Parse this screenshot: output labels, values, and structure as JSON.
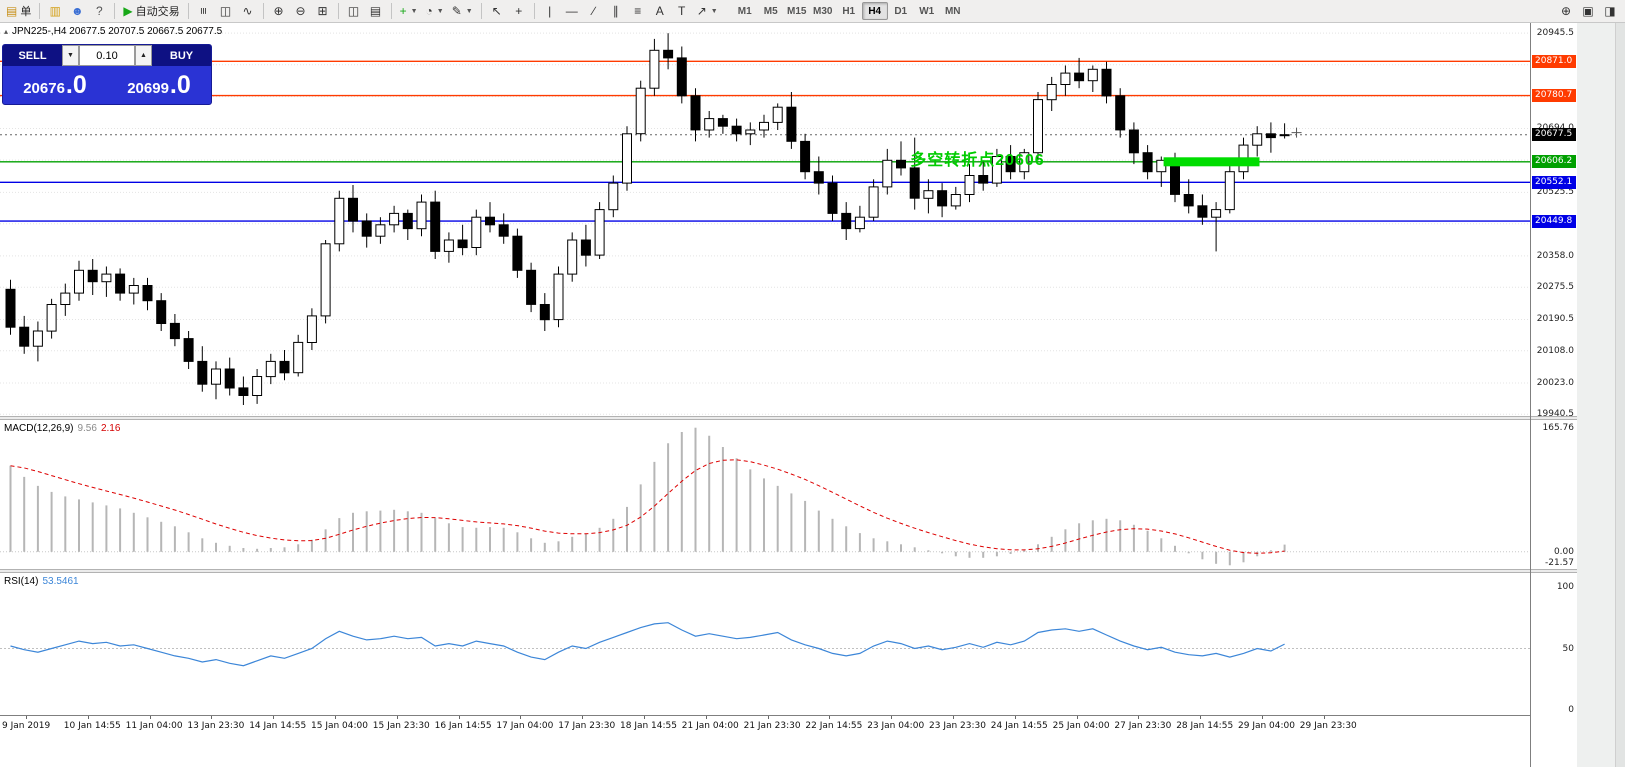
{
  "toolbar": {
    "left_groups": [
      {
        "items": [
          {
            "name": "new-order-button",
            "glyph": "▤",
            "glyph_color": "#c89018",
            "label": "单"
          }
        ]
      },
      {
        "items": [
          {
            "name": "chart-window-icon",
            "glyph": "▥",
            "glyph_color": "#d4a017"
          },
          {
            "name": "profile-icon",
            "glyph": "☻",
            "glyph_color": "#3b6fd4"
          },
          {
            "name": "help-icon",
            "glyph": "?",
            "glyph_color": "#555555"
          }
        ]
      },
      {
        "items": [
          {
            "name": "autotrade-button",
            "glyph": "▶",
            "glyph_color": "#18a818",
            "label": "自动交易"
          }
        ]
      },
      {
        "items": [
          {
            "name": "bar-chart-icon",
            "glyph": "≡",
            "rotate": true
          },
          {
            "name": "candlestick-chart-icon",
            "glyph": "◫"
          },
          {
            "name": "line-chart-icon",
            "glyph": "∿"
          }
        ]
      },
      {
        "items": [
          {
            "name": "zoom-in-icon",
            "glyph": "⊕"
          },
          {
            "name": "zoom-out-icon",
            "glyph": "⊖"
          },
          {
            "name": "tile-windows-icon",
            "glyph": "⊞"
          }
        ]
      },
      {
        "items": [
          {
            "name": "arrange-windows-icon",
            "glyph": "◫"
          },
          {
            "name": "cascade-windows-icon",
            "glyph": "▤"
          }
        ]
      },
      {
        "items": [
          {
            "name": "add-indicator-icon",
            "glyph": "+",
            "glyph_color": "#18a818",
            "caret": true
          },
          {
            "name": "periods-icon",
            "glyph": "◔",
            "caret": true
          },
          {
            "name": "template-icon",
            "glyph": "✎",
            "caret": true
          }
        ]
      },
      {
        "items": [
          {
            "name": "cursor-icon",
            "glyph": "↖"
          },
          {
            "name": "crosshair-icon",
            "glyph": "+"
          }
        ]
      },
      {
        "items": [
          {
            "name": "vertical-line-icon",
            "glyph": "|"
          },
          {
            "name": "horizontal-line-icon",
            "glyph": "—"
          },
          {
            "name": "trendline-icon",
            "glyph": "∕"
          },
          {
            "name": "channel-icon",
            "glyph": "∥"
          },
          {
            "name": "fibonacci-icon",
            "glyph": "≡"
          },
          {
            "name": "text-icon",
            "glyph": "A"
          },
          {
            "name": "label-icon",
            "glyph": "T"
          },
          {
            "name": "shapes-icon",
            "glyph": "↗",
            "caret": true
          }
        ]
      }
    ],
    "timeframes": [
      "M1",
      "M5",
      "M15",
      "M30",
      "H1",
      "H4",
      "D1",
      "W1",
      "MN"
    ],
    "active_timeframe": "H4",
    "right_items": [
      {
        "name": "search-zoom-icon",
        "glyph": "⊕"
      },
      {
        "name": "window-icon",
        "glyph": "▣"
      },
      {
        "name": "panel-toggle-icon",
        "glyph": "◨"
      }
    ]
  },
  "symbol_header": {
    "marker": "▴",
    "text": "JPN225-,H4  20677.5 20707.5 20667.5 20677.5"
  },
  "trade_panel": {
    "sell_label": "SELL",
    "buy_label": "BUY",
    "volume": "0.10",
    "spin_down": "▼",
    "spin_up": "▲",
    "sell_price_main": "20676",
    "sell_price_big": ".0",
    "buy_price_main": "20699",
    "buy_price_big": ".0"
  },
  "macd_label": {
    "name": "MACD(12,26,9)",
    "value_main": "9.56",
    "value_signal": "2.16"
  },
  "rsi_label": {
    "name": "RSI(14)",
    "value": "53.5461"
  },
  "price_axis": {
    "ticks": [
      19940.5,
      20023.0,
      20108.0,
      20190.5,
      20275.5,
      20358.0,
      20443.0,
      20525.5,
      20610.5,
      20694.0,
      20778.0,
      20862.0,
      20945.5
    ]
  },
  "macd_axis": [
    {
      "label": "165.76",
      "v": 165.76
    },
    {
      "label": "0.00",
      "v": 0
    },
    {
      "label": "-21.57",
      "v": -21.57
    }
  ],
  "rsi_axis": [
    {
      "label": "100",
      "v": 100
    },
    {
      "label": "50",
      "v": 50
    },
    {
      "label": "0",
      "v": 0
    }
  ],
  "time_axis": [
    "9 Jan 2019",
    "10 Jan 14:55",
    "11 Jan 04:00",
    "13 Jan 23:30",
    "14 Jan 14:55",
    "15 Jan 04:00",
    "15 Jan 23:30",
    "16 Jan 14:55",
    "17 Jan 04:00",
    "17 Jan 23:30",
    "18 Jan 14:55",
    "21 Jan 04:00",
    "21 Jan 23:30",
    "22 Jan 14:55",
    "23 Jan 04:00",
    "23 Jan 23:30",
    "24 Jan 14:55",
    "25 Jan 04:00",
    "27 Jan 23:30",
    "28 Jan 14:55",
    "29 Jan 04:00",
    "29 Jan 23:30"
  ],
  "chart_data": {
    "type": "candlestick",
    "symbol": "JPN225-",
    "timeframe": "H4",
    "title": "JPN225-,H4",
    "ylim": [
      19940.5,
      20945.5
    ],
    "ohlc": [
      [
        20270,
        20295,
        20150,
        20170
      ],
      [
        20170,
        20200,
        20100,
        20120
      ],
      [
        20120,
        20185,
        20080,
        20160
      ],
      [
        20160,
        20245,
        20140,
        20230
      ],
      [
        20230,
        20285,
        20200,
        20260
      ],
      [
        20260,
        20345,
        20240,
        20320
      ],
      [
        20320,
        20350,
        20255,
        20290
      ],
      [
        20290,
        20330,
        20250,
        20310
      ],
      [
        20310,
        20325,
        20240,
        20260
      ],
      [
        20260,
        20300,
        20230,
        20280
      ],
      [
        20280,
        20300,
        20215,
        20240
      ],
      [
        20240,
        20260,
        20160,
        20180
      ],
      [
        20180,
        20205,
        20120,
        20140
      ],
      [
        20140,
        20160,
        20060,
        20080
      ],
      [
        20080,
        20120,
        20000,
        20020
      ],
      [
        20020,
        20080,
        19980,
        20060
      ],
      [
        20060,
        20090,
        19990,
        20010
      ],
      [
        20010,
        20040,
        19965,
        19990
      ],
      [
        19990,
        20060,
        19968,
        20040
      ],
      [
        20040,
        20100,
        20020,
        20080
      ],
      [
        20080,
        20110,
        20030,
        20050
      ],
      [
        20050,
        20150,
        20040,
        20130
      ],
      [
        20130,
        20220,
        20110,
        20200
      ],
      [
        20200,
        20400,
        20180,
        20390
      ],
      [
        20390,
        20530,
        20370,
        20510
      ],
      [
        20510,
        20545,
        20420,
        20450
      ],
      [
        20450,
        20470,
        20380,
        20410
      ],
      [
        20410,
        20460,
        20390,
        20440
      ],
      [
        20440,
        20490,
        20420,
        20470
      ],
      [
        20470,
        20480,
        20400,
        20430
      ],
      [
        20430,
        20520,
        20410,
        20500
      ],
      [
        20500,
        20530,
        20350,
        20370
      ],
      [
        20370,
        20420,
        20340,
        20400
      ],
      [
        20400,
        20440,
        20360,
        20380
      ],
      [
        20380,
        20480,
        20360,
        20460
      ],
      [
        20460,
        20500,
        20420,
        20440
      ],
      [
        20440,
        20470,
        20390,
        20410
      ],
      [
        20410,
        20430,
        20300,
        20320
      ],
      [
        20320,
        20340,
        20210,
        20230
      ],
      [
        20230,
        20260,
        20160,
        20190
      ],
      [
        20190,
        20330,
        20170,
        20310
      ],
      [
        20310,
        20420,
        20290,
        20400
      ],
      [
        20400,
        20440,
        20330,
        20360
      ],
      [
        20360,
        20500,
        20350,
        20480
      ],
      [
        20480,
        20570,
        20460,
        20550
      ],
      [
        20550,
        20700,
        20530,
        20680
      ],
      [
        20680,
        20820,
        20660,
        20800
      ],
      [
        20800,
        20930,
        20780,
        20900
      ],
      [
        20900,
        20945,
        20850,
        20880
      ],
      [
        20880,
        20910,
        20760,
        20780
      ],
      [
        20780,
        20800,
        20660,
        20690
      ],
      [
        20690,
        20740,
        20670,
        20720
      ],
      [
        20720,
        20730,
        20680,
        20700
      ],
      [
        20700,
        20720,
        20660,
        20680
      ],
      [
        20680,
        20710,
        20650,
        20690
      ],
      [
        20690,
        20730,
        20670,
        20710
      ],
      [
        20710,
        20760,
        20690,
        20750
      ],
      [
        20750,
        20790,
        20640,
        20660
      ],
      [
        20660,
        20680,
        20560,
        20580
      ],
      [
        20580,
        20620,
        20520,
        20550
      ],
      [
        20550,
        20570,
        20450,
        20470
      ],
      [
        20470,
        20500,
        20400,
        20430
      ],
      [
        20430,
        20490,
        20420,
        20460
      ],
      [
        20460,
        20560,
        20450,
        20540
      ],
      [
        20540,
        20640,
        20520,
        20610
      ],
      [
        20610,
        20660,
        20570,
        20590
      ],
      [
        20590,
        20670,
        20480,
        20510
      ],
      [
        20510,
        20560,
        20470,
        20530
      ],
      [
        20530,
        20550,
        20460,
        20490
      ],
      [
        20490,
        20540,
        20480,
        20520
      ],
      [
        20520,
        20600,
        20500,
        20570
      ],
      [
        20570,
        20610,
        20530,
        20550
      ],
      [
        20550,
        20640,
        20540,
        20620
      ],
      [
        20620,
        20650,
        20560,
        20580
      ],
      [
        20580,
        20640,
        20560,
        20630
      ],
      [
        20630,
        20790,
        20610,
        20770
      ],
      [
        20770,
        20830,
        20740,
        20810
      ],
      [
        20810,
        20860,
        20780,
        20840
      ],
      [
        20840,
        20880,
        20800,
        20820
      ],
      [
        20820,
        20860,
        20790,
        20850
      ],
      [
        20850,
        20870,
        20760,
        20780
      ],
      [
        20780,
        20800,
        20670,
        20690
      ],
      [
        20690,
        20710,
        20600,
        20630
      ],
      [
        20630,
        20650,
        20560,
        20580
      ],
      [
        20580,
        20620,
        20540,
        20610
      ],
      [
        20610,
        20630,
        20500,
        20520
      ],
      [
        20520,
        20560,
        20470,
        20490
      ],
      [
        20490,
        20520,
        20440,
        20460
      ],
      [
        20460,
        20500,
        20370,
        20480
      ],
      [
        20480,
        20600,
        20470,
        20580
      ],
      [
        20580,
        20670,
        20560,
        20650
      ],
      [
        20650,
        20700,
        20620,
        20680
      ],
      [
        20680,
        20710,
        20630,
        20670
      ],
      [
        20677.5,
        20707.5,
        20667.5,
        20677.5
      ]
    ],
    "hlines": [
      {
        "price": 20871.0,
        "color": "#FF3B00",
        "width": 1.4,
        "style": "solid",
        "label": "20871.0",
        "badge": "#FF3B00"
      },
      {
        "price": 20780.7,
        "color": "#FF3B00",
        "width": 1.4,
        "style": "solid",
        "label": "20780.7",
        "badge": "#FF3B00"
      },
      {
        "price": 20677.5,
        "color": "#666666",
        "width": 1,
        "style": "dotted",
        "label": "20677.5",
        "badge": "#000000",
        "role": "current-price"
      },
      {
        "price": 20606.2,
        "color": "#00A000",
        "width": 1.4,
        "style": "solid",
        "label": "20606.2",
        "badge": "#00A000"
      },
      {
        "price": 20552.1,
        "color": "#0000E6",
        "width": 1.4,
        "style": "solid",
        "label": "20552.1",
        "badge": "#0000E6"
      },
      {
        "price": 20449.8,
        "color": "#0000E6",
        "width": 1.4,
        "style": "solid",
        "label": "20449.8",
        "badge": "#0000E6"
      }
    ],
    "objects": [
      {
        "type": "text",
        "text": "多空转折点20606",
        "color": "#00CC00",
        "bar": 66,
        "price": 20635
      },
      {
        "type": "rect",
        "color": "#00DD00",
        "from_bar": 84.5,
        "to_bar": 91.5,
        "price": 20606.2,
        "thickness": 9
      },
      {
        "type": "cross",
        "bar": 94.2,
        "price": 20683,
        "color": "#555555"
      }
    ],
    "indicators": [
      {
        "name": "MACD(12,26,9)",
        "type": "histogram+signal",
        "last_main": 9.56,
        "last_signal": 2.16,
        "signal_period": 9,
        "range": [
          -21.57,
          165.76
        ],
        "values": [
          115,
          100,
          88,
          80,
          74,
          70,
          66,
          62,
          58,
          52,
          46,
          40,
          34,
          26,
          18,
          12,
          8,
          5,
          4,
          5,
          6,
          10,
          16,
          30,
          45,
          52,
          54,
          55,
          56,
          54,
          52,
          45,
          38,
          33,
          32,
          33,
          32,
          26,
          18,
          12,
          14,
          20,
          24,
          32,
          44,
          60,
          90,
          120,
          145,
          160,
          165.76,
          155,
          140,
          125,
          110,
          98,
          88,
          78,
          68,
          55,
          44,
          34,
          25,
          18,
          14,
          10,
          6,
          2,
          -2,
          -6,
          -8,
          -8,
          -6,
          -3,
          2,
          10,
          20,
          30,
          38,
          42,
          44,
          42,
          36,
          28,
          18,
          8,
          -2,
          -10,
          -16,
          -18,
          -14,
          -6,
          2,
          9.56
        ]
      },
      {
        "name": "RSI(14)",
        "type": "line",
        "last": 53.5461,
        "levels": [
          50
        ],
        "range": [
          0,
          100
        ],
        "values": [
          52,
          49,
          47,
          50,
          53,
          56,
          54,
          55,
          52,
          53,
          50,
          47,
          44,
          42,
          39,
          41,
          38,
          36,
          40,
          44,
          42,
          46,
          50,
          58,
          64,
          60,
          57,
          58,
          60,
          58,
          59,
          52,
          54,
          52,
          56,
          54,
          52,
          47,
          43,
          41,
          47,
          52,
          50,
          55,
          59,
          63,
          67,
          70,
          71,
          65,
          60,
          62,
          60,
          58,
          59,
          61,
          63,
          57,
          53,
          50,
          46,
          44,
          46,
          52,
          56,
          54,
          50,
          52,
          49,
          51,
          54,
          51,
          55,
          53,
          56,
          63,
          65,
          66,
          64,
          66,
          61,
          56,
          52,
          49,
          51,
          47,
          45,
          44,
          46,
          43,
          46,
          50,
          48,
          53.55
        ]
      }
    ]
  }
}
